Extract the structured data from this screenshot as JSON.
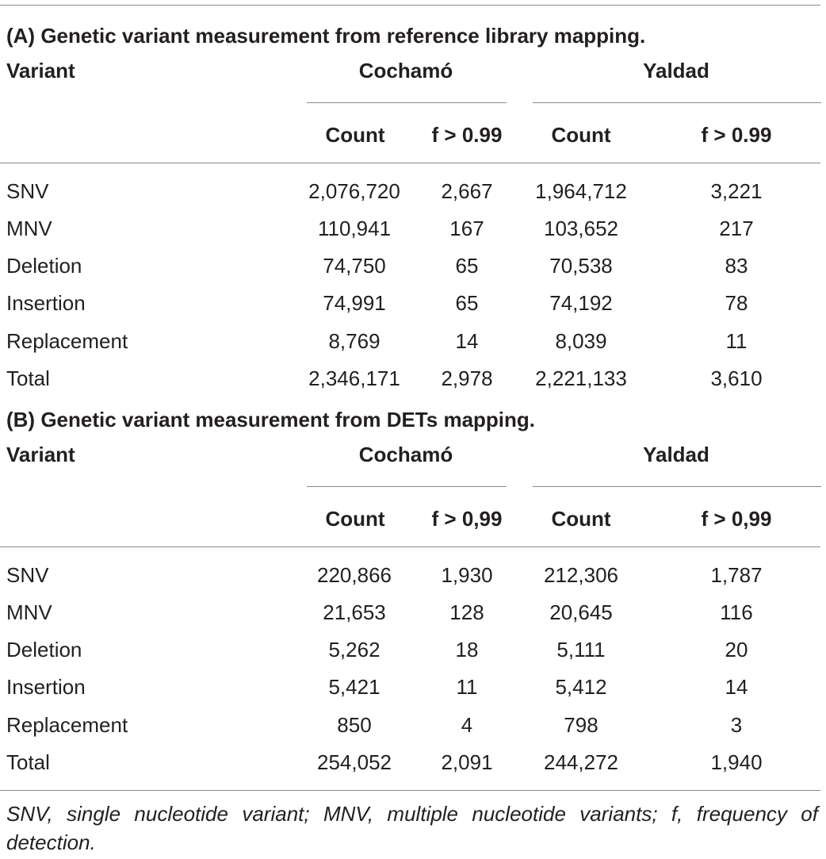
{
  "tables": [
    {
      "caption": "(A) Genetic variant measurement from reference library mapping.",
      "header": {
        "variant": "Variant",
        "groups": [
          "Cochamó",
          "Yaldad"
        ],
        "subheaders": [
          "Count",
          "f > 0.99",
          "Count",
          "f > 0.99"
        ]
      },
      "rows": [
        {
          "label": "SNV",
          "values": [
            "2,076,720",
            "2,667",
            "1,964,712",
            "3,221"
          ]
        },
        {
          "label": "MNV",
          "values": [
            "110,941",
            "167",
            "103,652",
            "217"
          ]
        },
        {
          "label": "Deletion",
          "values": [
            "74,750",
            "65",
            "70,538",
            "83"
          ]
        },
        {
          "label": "Insertion",
          "values": [
            "74,991",
            "65",
            "74,192",
            "78"
          ]
        },
        {
          "label": "Replacement",
          "values": [
            "8,769",
            "14",
            "8,039",
            "11"
          ]
        },
        {
          "label": "Total",
          "values": [
            "2,346,171",
            "2,978",
            "2,221,133",
            "3,610"
          ]
        }
      ]
    },
    {
      "caption": "(B) Genetic variant measurement from DETs mapping.",
      "header": {
        "variant": "Variant",
        "groups": [
          "Cochamó",
          "Yaldad"
        ],
        "subheaders": [
          "Count",
          "f > 0,99",
          "Count",
          "f > 0,99"
        ]
      },
      "rows": [
        {
          "label": "SNV",
          "values": [
            "220,866",
            "1,930",
            "212,306",
            "1,787"
          ]
        },
        {
          "label": "MNV",
          "values": [
            "21,653",
            "128",
            "20,645",
            "116"
          ]
        },
        {
          "label": "Deletion",
          "values": [
            "5,262",
            "18",
            "5,111",
            "20"
          ]
        },
        {
          "label": "Insertion",
          "values": [
            "5,421",
            "11",
            "5,412",
            "14"
          ]
        },
        {
          "label": "Replacement",
          "values": [
            "850",
            "4",
            "798",
            "3"
          ]
        },
        {
          "label": "Total",
          "values": [
            "254,052",
            "2,091",
            "244,272",
            "1,940"
          ]
        }
      ]
    }
  ],
  "footnote": "SNV, single nucleotide variant; MNV, multiple nucleotide variants; f, frequency of detection."
}
